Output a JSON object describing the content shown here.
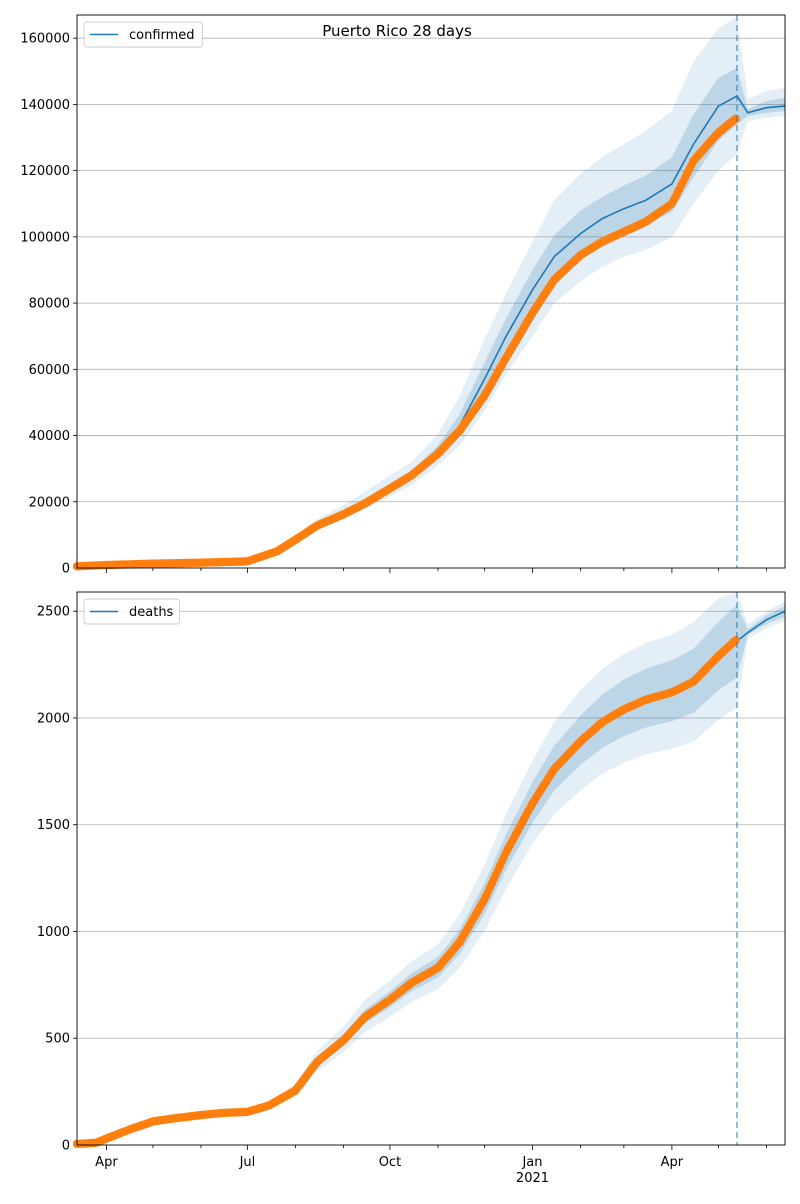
{
  "chart_data": [
    {
      "type": "line",
      "title": "Puerto Rico 28 days",
      "legend": {
        "placement": "top-left",
        "entries": [
          "confirmed"
        ]
      },
      "grid": "horizontal",
      "xlabel": "",
      "ylabel": "",
      "xlim": [
        "2020-03-13",
        "2021-06-13"
      ],
      "ylim": [
        0,
        167000
      ],
      "yticks": [
        0,
        20000,
        40000,
        60000,
        80000,
        100000,
        120000,
        140000,
        160000
      ],
      "vline": "2021-05-13",
      "series": [
        {
          "name": "confirmed",
          "x": [
            "2020-03-13",
            "2020-04-01",
            "2020-05-01",
            "2020-06-01",
            "2020-07-01",
            "2020-07-20",
            "2020-08-01",
            "2020-08-15",
            "2020-09-01",
            "2020-09-15",
            "2020-10-01",
            "2020-10-15",
            "2020-11-01",
            "2020-11-15",
            "2020-12-01",
            "2020-12-15",
            "2021-01-01",
            "2021-01-15",
            "2021-02-01",
            "2021-02-15",
            "2021-03-01",
            "2021-03-15",
            "2021-04-01",
            "2021-04-15",
            "2021-05-01",
            "2021-05-13",
            "2021-05-20",
            "2021-06-01",
            "2021-06-13"
          ],
          "y": [
            500,
            900,
            1300,
            1600,
            2000,
            5000,
            8800,
            13000,
            16500,
            20000,
            24000,
            28000,
            35000,
            43000,
            57000,
            70000,
            84000,
            94000,
            101000,
            105500,
            108500,
            111000,
            116000,
            128000,
            139500,
            142500,
            137500,
            139000,
            139500
          ],
          "band_inner": [
            [
              500,
              500
            ],
            [
              900,
              900
            ],
            [
              1300,
              1300
            ],
            [
              1600,
              1600
            ],
            [
              2000,
              2000
            ],
            [
              4900,
              5100
            ],
            [
              8600,
              9000
            ],
            [
              12700,
              13500
            ],
            [
              16000,
              17300
            ],
            [
              19300,
              21000
            ],
            [
              23000,
              25500
            ],
            [
              26800,
              29300
            ],
            [
              33500,
              37000
            ],
            [
              40500,
              46500
            ],
            [
              53000,
              62000
            ],
            [
              65000,
              75500
            ],
            [
              77500,
              90000
            ],
            [
              87000,
              100500
            ],
            [
              94000,
              108000
            ],
            [
              98500,
              112000
            ],
            [
              101500,
              115500
            ],
            [
              103500,
              118500
            ],
            [
              107500,
              124000
            ],
            [
              118000,
              137000
            ],
            [
              129000,
              148000
            ],
            [
              134000,
              151000
            ],
            [
              136500,
              138500
            ],
            [
              137500,
              141000
            ],
            [
              138000,
              142000
            ]
          ],
          "band_outer": [
            [
              500,
              500
            ],
            [
              900,
              900
            ],
            [
              1300,
              1300
            ],
            [
              1600,
              1600
            ],
            [
              2000,
              2000
            ],
            [
              4700,
              5400
            ],
            [
              8200,
              9700
            ],
            [
              12000,
              14800
            ],
            [
              15000,
              19000
            ],
            [
              18000,
              23000
            ],
            [
              21500,
              28000
            ],
            [
              25000,
              32000
            ],
            [
              31000,
              40500
            ],
            [
              37000,
              52000
            ],
            [
              47500,
              69000
            ],
            [
              58500,
              83000
            ],
            [
              70000,
              98500
            ],
            [
              80000,
              111000
            ],
            [
              86500,
              119000
            ],
            [
              91000,
              124000
            ],
            [
              94000,
              128000
            ],
            [
              96000,
              132000
            ],
            [
              100000,
              138000
            ],
            [
              110000,
              153000
            ],
            [
              120000,
              163000
            ],
            [
              125000,
              166500
            ],
            [
              135000,
              141500
            ],
            [
              136000,
              144000
            ],
            [
              136500,
              145000
            ]
          ],
          "observed_x": [
            "2020-03-13",
            "2020-04-01",
            "2020-05-01",
            "2020-06-01",
            "2020-07-01",
            "2020-07-20",
            "2020-08-01",
            "2020-08-15",
            "2020-09-01",
            "2020-09-15",
            "2020-10-01",
            "2020-10-15",
            "2020-11-01",
            "2020-11-15",
            "2020-12-01",
            "2020-12-15",
            "2021-01-01",
            "2021-01-15",
            "2021-02-01",
            "2021-02-15",
            "2021-03-01",
            "2021-03-15",
            "2021-04-01",
            "2021-04-15",
            "2021-05-01",
            "2021-05-13"
          ],
          "observed_y": [
            500,
            900,
            1300,
            1600,
            2000,
            5000,
            8500,
            12800,
            16200,
            19500,
            24000,
            28000,
            34500,
            41500,
            52000,
            63500,
            77000,
            87000,
            94500,
            98500,
            101500,
            104500,
            110000,
            123000,
            131500,
            136000
          ]
        }
      ]
    },
    {
      "type": "line",
      "title": "",
      "legend": {
        "placement": "top-left",
        "entries": [
          "deaths"
        ]
      },
      "grid": "horizontal",
      "xlabel": "",
      "ylabel": "",
      "xlim": [
        "2020-03-13",
        "2021-06-13"
      ],
      "ylim": [
        0,
        2590
      ],
      "yticks": [
        0,
        500,
        1000,
        1500,
        2000,
        2500
      ],
      "xticks": [
        {
          "date": "2020-04-01",
          "label": "Apr",
          "sub": ""
        },
        {
          "date": "2020-07-01",
          "label": "Jul",
          "sub": ""
        },
        {
          "date": "2020-10-01",
          "label": "Oct",
          "sub": ""
        },
        {
          "date": "2021-01-01",
          "label": "Jan",
          "sub": "2021"
        },
        {
          "date": "2021-04-01",
          "label": "Apr",
          "sub": ""
        }
      ],
      "vline": "2021-05-13",
      "series": [
        {
          "name": "deaths",
          "x": [
            "2020-03-13",
            "2020-03-25",
            "2020-04-15",
            "2020-05-01",
            "2020-05-15",
            "2020-06-01",
            "2020-06-15",
            "2020-07-01",
            "2020-07-15",
            "2020-08-01",
            "2020-08-15",
            "2020-09-01",
            "2020-09-15",
            "2020-10-01",
            "2020-10-15",
            "2020-11-01",
            "2020-11-15",
            "2020-12-01",
            "2020-12-15",
            "2021-01-01",
            "2021-01-15",
            "2021-02-01",
            "2021-02-15",
            "2021-03-01",
            "2021-03-15",
            "2021-04-01",
            "2021-04-15",
            "2021-05-01",
            "2021-05-13",
            "2021-05-20",
            "2021-06-01",
            "2021-06-13"
          ],
          "y": [
            5,
            10,
            70,
            110,
            125,
            140,
            150,
            155,
            185,
            255,
            390,
            490,
            600,
            680,
            760,
            830,
            950,
            1150,
            1370,
            1600,
            1760,
            1890,
            1980,
            2040,
            2085,
            2120,
            2170,
            2290,
            2360,
            2400,
            2460,
            2500
          ],
          "band_inner": [
            [
              5,
              5
            ],
            [
              10,
              10
            ],
            [
              65,
              75
            ],
            [
              105,
              115
            ],
            [
              120,
              130
            ],
            [
              135,
              145
            ],
            [
              145,
              155
            ],
            [
              150,
              160
            ],
            [
              175,
              195
            ],
            [
              240,
              270
            ],
            [
              370,
              410
            ],
            [
              465,
              520
            ],
            [
              570,
              635
            ],
            [
              645,
              720
            ],
            [
              720,
              805
            ],
            [
              785,
              880
            ],
            [
              895,
              1010
            ],
            [
              1080,
              1225
            ],
            [
              1290,
              1455
            ],
            [
              1510,
              1700
            ],
            [
              1660,
              1870
            ],
            [
              1780,
              2010
            ],
            [
              1860,
              2110
            ],
            [
              1915,
              2180
            ],
            [
              1955,
              2230
            ],
            [
              1985,
              2270
            ],
            [
              2025,
              2325
            ],
            [
              2130,
              2450
            ],
            [
              2190,
              2530
            ],
            [
              2390,
              2415
            ],
            [
              2440,
              2480
            ],
            [
              2475,
              2525
            ]
          ],
          "band_outer": [
            [
              5,
              5
            ],
            [
              10,
              10
            ],
            [
              60,
              80
            ],
            [
              100,
              120
            ],
            [
              115,
              135
            ],
            [
              130,
              150
            ],
            [
              140,
              160
            ],
            [
              145,
              165
            ],
            [
              170,
              205
            ],
            [
              225,
              285
            ],
            [
              345,
              440
            ],
            [
              435,
              555
            ],
            [
              530,
              680
            ],
            [
              600,
              770
            ],
            [
              670,
              860
            ],
            [
              730,
              940
            ],
            [
              830,
              1080
            ],
            [
              1000,
              1310
            ],
            [
              1200,
              1550
            ],
            [
              1410,
              1800
            ],
            [
              1550,
              1980
            ],
            [
              1660,
              2130
            ],
            [
              1740,
              2230
            ],
            [
              1790,
              2300
            ],
            [
              1830,
              2350
            ],
            [
              1855,
              2390
            ],
            [
              1890,
              2450
            ],
            [
              1990,
              2560
            ],
            [
              2050,
              2590
            ],
            [
              2370,
              2440
            ],
            [
              2420,
              2500
            ],
            [
              2455,
              2545
            ]
          ],
          "observed_x": [
            "2020-03-13",
            "2020-03-25",
            "2020-04-15",
            "2020-05-01",
            "2020-05-15",
            "2020-06-01",
            "2020-06-15",
            "2020-07-01",
            "2020-07-15",
            "2020-08-01",
            "2020-08-15",
            "2020-09-01",
            "2020-09-15",
            "2020-10-01",
            "2020-10-15",
            "2020-11-01",
            "2020-11-15",
            "2020-12-01",
            "2020-12-15",
            "2021-01-01",
            "2021-01-15",
            "2021-02-01",
            "2021-02-15",
            "2021-03-01",
            "2021-03-15",
            "2021-04-01",
            "2021-04-15",
            "2021-05-01",
            "2021-05-13"
          ],
          "observed_y": [
            5,
            10,
            70,
            110,
            125,
            140,
            150,
            155,
            185,
            255,
            390,
            490,
            600,
            680,
            760,
            830,
            950,
            1150,
            1370,
            1600,
            1760,
            1890,
            1980,
            2040,
            2085,
            2120,
            2170,
            2290,
            2370
          ]
        }
      ]
    }
  ],
  "colors": {
    "forecast_line": "#1f77b4",
    "observed": "#ff7f0e",
    "band": "#1f77b4",
    "vline": "#1f77b4",
    "grid": "#b0b0b0"
  }
}
